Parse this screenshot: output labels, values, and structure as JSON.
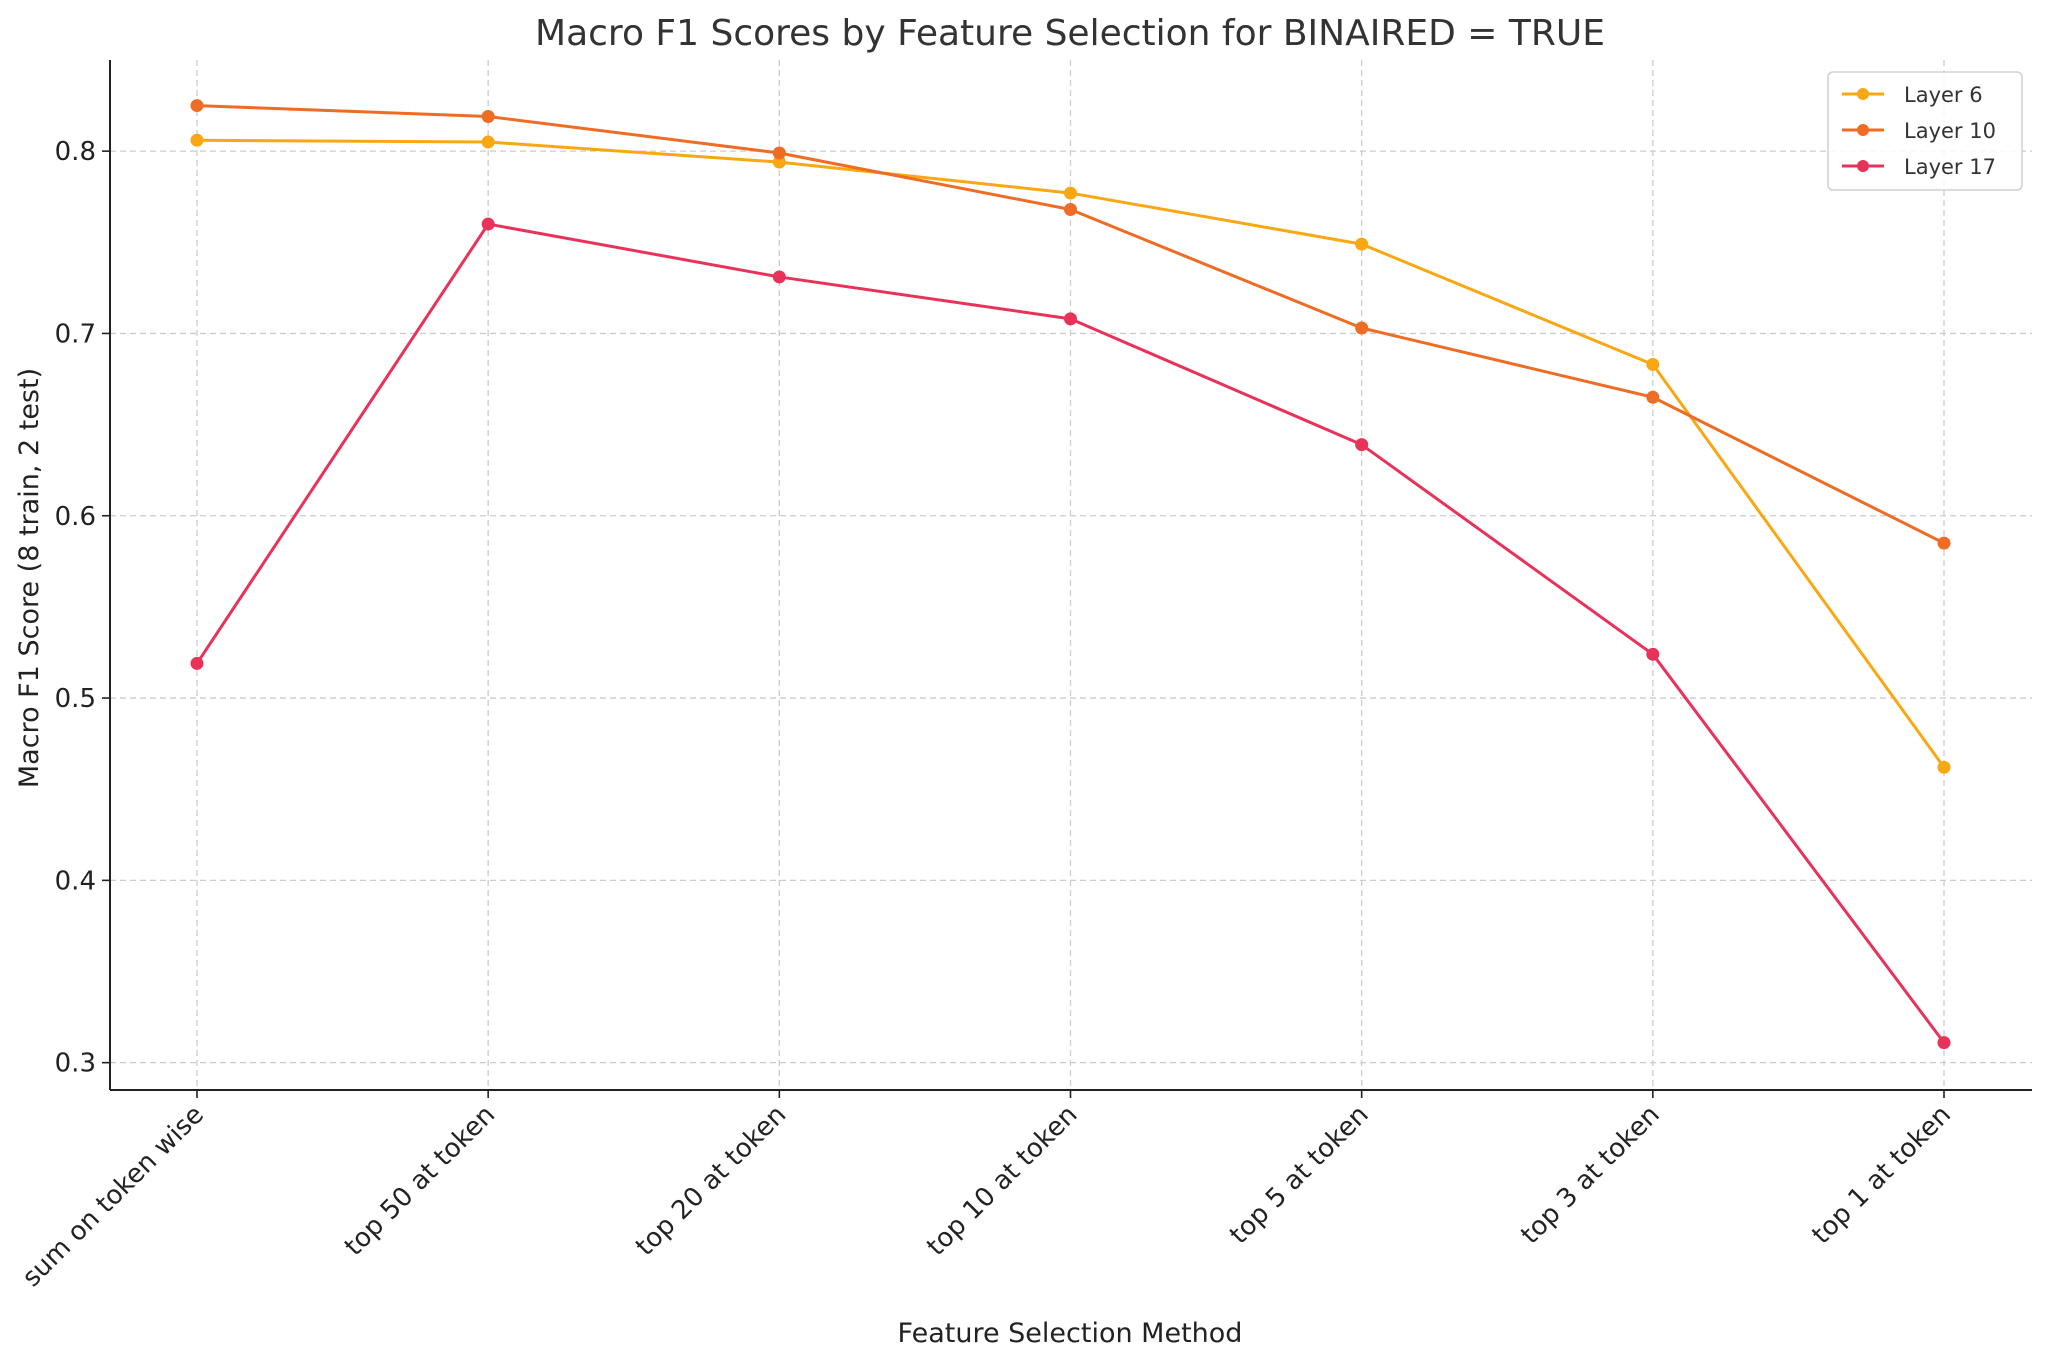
{
  "chart_data": {
    "type": "line",
    "title": "Macro F1 Scores by Feature Selection for BINAIRED = TRUE",
    "xlabel": "Feature Selection Method",
    "ylabel": "Macro F1 Score (8 train, 2 test)",
    "categories": [
      "sum on token wise",
      "top 50 at token",
      "top 20 at token",
      "top 10 at token",
      "top 5 at token",
      "top 3 at token",
      "top 1 at token"
    ],
    "ylim": [
      0.285,
      0.85
    ],
    "yticks": [
      0.3,
      0.4,
      0.5,
      0.6,
      0.7,
      0.8
    ],
    "ytick_labels": [
      "0.3",
      "0.4",
      "0.5",
      "0.6",
      "0.7",
      "0.8"
    ],
    "grid": true,
    "legend_position": "top-right",
    "series": [
      {
        "name": "Layer 6",
        "color": "#F9A712",
        "values": [
          0.806,
          0.805,
          0.794,
          0.777,
          0.749,
          0.683,
          0.462
        ]
      },
      {
        "name": "Layer 10",
        "color": "#EE6C24",
        "values": [
          0.825,
          0.819,
          0.799,
          0.768,
          0.703,
          0.665,
          0.585
        ]
      },
      {
        "name": "Layer 17",
        "color": "#E9325A",
        "values": [
          0.519,
          0.76,
          0.731,
          0.708,
          0.639,
          0.524,
          0.311
        ]
      }
    ]
  }
}
